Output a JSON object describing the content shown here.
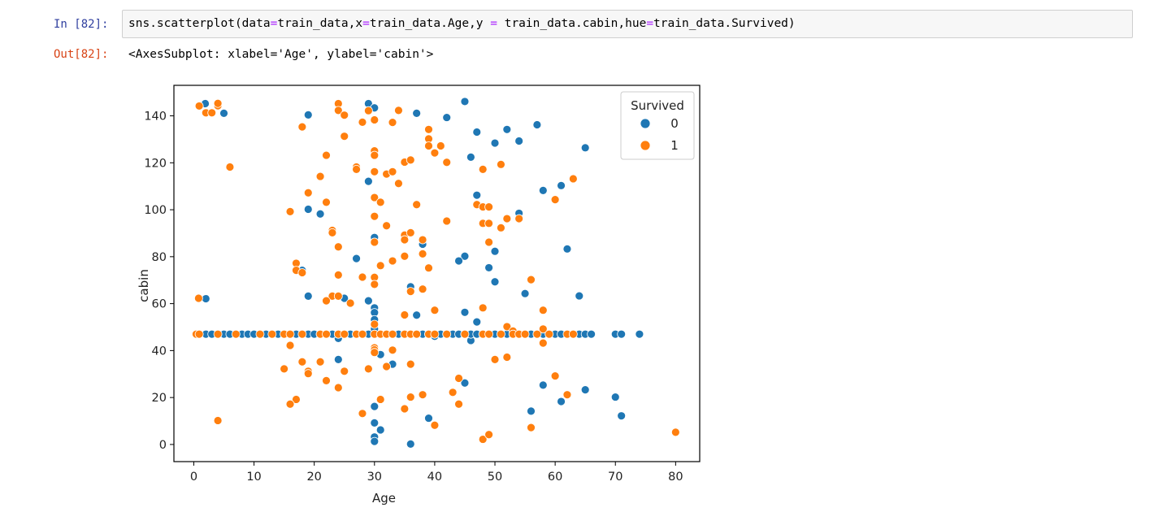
{
  "cell": {
    "in_prompt": "In [82]:",
    "out_prompt": "Out[82]:",
    "code_parts": [
      "sns.scatterplot(data",
      "=",
      "train_data,x",
      "=",
      "train_data.Age,y ",
      "=",
      " train_data.cabin,hue",
      "=",
      "train_data.Survived)"
    ],
    "output": "<AxesSubplot: xlabel='Age', ylabel='cabin'>"
  },
  "chart_data": {
    "type": "scatter",
    "xlabel": "Age",
    "ylabel": "cabin",
    "xlim": [
      -3.3,
      84.0
    ],
    "ylim": [
      -7.3,
      153.0
    ],
    "xticks": [
      0,
      10,
      20,
      30,
      40,
      50,
      60,
      70,
      80
    ],
    "yticks": [
      0,
      20,
      40,
      60,
      80,
      100,
      120,
      140
    ],
    "grid": false,
    "legend": {
      "title": "Survived",
      "placement": "top-right",
      "entries": [
        "0",
        "1"
      ]
    },
    "colors": {
      "0": "#1f77b4",
      "1": "#ff7f0e"
    },
    "series": [
      {
        "name": "0",
        "points": [
          [
            1.9,
            145.2
          ],
          [
            5,
            141.1
          ],
          [
            19,
            140.4
          ],
          [
            29,
            145.2
          ],
          [
            30,
            143.4
          ],
          [
            37,
            141.1
          ],
          [
            42,
            139.3
          ],
          [
            45,
            146.1
          ],
          [
            47,
            133.1
          ],
          [
            52,
            134.2
          ],
          [
            57,
            136.2
          ],
          [
            50,
            128.4
          ],
          [
            54,
            129.3
          ],
          [
            46,
            122.4
          ],
          [
            65,
            126.4
          ],
          [
            29,
            112.1
          ],
          [
            58,
            108.2
          ],
          [
            61,
            110.3
          ],
          [
            47,
            106.2
          ],
          [
            19,
            100.2
          ],
          [
            21,
            98.2
          ],
          [
            54,
            98.5
          ],
          [
            30,
            88.2
          ],
          [
            38,
            85.3
          ],
          [
            62,
            83.3
          ],
          [
            45,
            80.2
          ],
          [
            50,
            82.3
          ],
          [
            27,
            79.2
          ],
          [
            44,
            78.2
          ],
          [
            18,
            74.2
          ],
          [
            49,
            75.3
          ],
          [
            50,
            69.3
          ],
          [
            36,
            67.2
          ],
          [
            55,
            64.3
          ],
          [
            64,
            63.3
          ],
          [
            2,
            62.1
          ],
          [
            19,
            63.2
          ],
          [
            25,
            62.3
          ],
          [
            29,
            61.2
          ],
          [
            30,
            58.2
          ],
          [
            30,
            56.2
          ],
          [
            37,
            55.1
          ],
          [
            30,
            53.2
          ],
          [
            45,
            56.3
          ],
          [
            47,
            52.2
          ],
          [
            30,
            49.2
          ],
          [
            46,
            44.3
          ],
          [
            24,
            45.2
          ],
          [
            40,
            46.1
          ],
          [
            31,
            38.3
          ],
          [
            24,
            36.2
          ],
          [
            33,
            34.2
          ],
          [
            45,
            26.2
          ],
          [
            58,
            25.3
          ],
          [
            65,
            23.3
          ],
          [
            61,
            18.3
          ],
          [
            70,
            20.2
          ],
          [
            56,
            14.2
          ],
          [
            39,
            11.2
          ],
          [
            30,
            16.2
          ],
          [
            71,
            12.2
          ],
          [
            30,
            9.2
          ],
          [
            31,
            6.2
          ],
          [
            30,
            3.2
          ],
          [
            30,
            1.3
          ],
          [
            36,
            0.2
          ],
          [
            1,
            47
          ],
          [
            2,
            47
          ],
          [
            3,
            47
          ],
          [
            5,
            47
          ],
          [
            6,
            47
          ],
          [
            8,
            47
          ],
          [
            9,
            47
          ],
          [
            10,
            47
          ],
          [
            12,
            47
          ],
          [
            14,
            47
          ],
          [
            17,
            47
          ],
          [
            18,
            47
          ],
          [
            19,
            47
          ],
          [
            20,
            47
          ],
          [
            21,
            47
          ],
          [
            22,
            47
          ],
          [
            23,
            47
          ],
          [
            24,
            47
          ],
          [
            25,
            47
          ],
          [
            26,
            47
          ],
          [
            27,
            47
          ],
          [
            28,
            47
          ],
          [
            29,
            47
          ],
          [
            30,
            47
          ],
          [
            31,
            47
          ],
          [
            32,
            47
          ],
          [
            33,
            47
          ],
          [
            34,
            47
          ],
          [
            35,
            47
          ],
          [
            36,
            47
          ],
          [
            37,
            47
          ],
          [
            38,
            47
          ],
          [
            39,
            47
          ],
          [
            40,
            47
          ],
          [
            41,
            47
          ],
          [
            42,
            47
          ],
          [
            43,
            47
          ],
          [
            44,
            47
          ],
          [
            45,
            47
          ],
          [
            46,
            47
          ],
          [
            47,
            47
          ],
          [
            48,
            47
          ],
          [
            49,
            47
          ],
          [
            50,
            47
          ],
          [
            51,
            47
          ],
          [
            52,
            47
          ],
          [
            53,
            47
          ],
          [
            55,
            47
          ],
          [
            56,
            47
          ],
          [
            57,
            47
          ],
          [
            58,
            47
          ],
          [
            59,
            47
          ],
          [
            60,
            47
          ],
          [
            61,
            47
          ],
          [
            63,
            47
          ],
          [
            64,
            47
          ],
          [
            65,
            47
          ],
          [
            66,
            47
          ],
          [
            70,
            47
          ],
          [
            71,
            47
          ],
          [
            74,
            47
          ]
        ]
      },
      {
        "name": "1",
        "points": [
          [
            0.9,
            144.2
          ],
          [
            2,
            141.3
          ],
          [
            3,
            141.3
          ],
          [
            4,
            144.3
          ],
          [
            4,
            145.3
          ],
          [
            6,
            118.2
          ],
          [
            18,
            135.3
          ],
          [
            24,
            145.2
          ],
          [
            24,
            142.3
          ],
          [
            25,
            140.3
          ],
          [
            28,
            137.3
          ],
          [
            30,
            138.3
          ],
          [
            29,
            142.2
          ],
          [
            34,
            142.3
          ],
          [
            30,
            125.1
          ],
          [
            30,
            123.2
          ],
          [
            25,
            131.3
          ],
          [
            22,
            123.2
          ],
          [
            21,
            114.2
          ],
          [
            27,
            118.2
          ],
          [
            27,
            117.2
          ],
          [
            19,
            107.2
          ],
          [
            22,
            103.2
          ],
          [
            16,
            99.2
          ],
          [
            30,
            116.2
          ],
          [
            32,
            115.2
          ],
          [
            33,
            116.2
          ],
          [
            34,
            111.2
          ],
          [
            35,
            120.3
          ],
          [
            36,
            121.2
          ],
          [
            33,
            137.2
          ],
          [
            39,
            134.2
          ],
          [
            39,
            130.2
          ],
          [
            39,
            127.2
          ],
          [
            40,
            124.2
          ],
          [
            41,
            127.2
          ],
          [
            42,
            120.2
          ],
          [
            48,
            117.2
          ],
          [
            51,
            119.3
          ],
          [
            52,
            96.2
          ],
          [
            54,
            96.2
          ],
          [
            60,
            104.3
          ],
          [
            63,
            113.2
          ],
          [
            47,
            102.2
          ],
          [
            48,
            101.2
          ],
          [
            49,
            101.2
          ],
          [
            48,
            94.2
          ],
          [
            49,
            94.2
          ],
          [
            51,
            92.3
          ],
          [
            42,
            95.2
          ],
          [
            37,
            102.2
          ],
          [
            30,
            105.2
          ],
          [
            31,
            103.2
          ],
          [
            30,
            97.2
          ],
          [
            32,
            93.2
          ],
          [
            23,
            91.2
          ],
          [
            23,
            90.2
          ],
          [
            35,
            89.2
          ],
          [
            36,
            90.2
          ],
          [
            35,
            87.2
          ],
          [
            38,
            87.2
          ],
          [
            49,
            86.2
          ],
          [
            30,
            86.2
          ],
          [
            24,
            84.2
          ],
          [
            33,
            78.2
          ],
          [
            31,
            76.2
          ],
          [
            35,
            80.2
          ],
          [
            38,
            81.2
          ],
          [
            39,
            75.2
          ],
          [
            17,
            77.2
          ],
          [
            17,
            74.2
          ],
          [
            18,
            73.2
          ],
          [
            24,
            72.2
          ],
          [
            28,
            71.3
          ],
          [
            30,
            71.2
          ],
          [
            30,
            68.2
          ],
          [
            36,
            65.2
          ],
          [
            38,
            66.2
          ],
          [
            56,
            70.2
          ],
          [
            23,
            63.2
          ],
          [
            24,
            63.2
          ],
          [
            22,
            61.2
          ],
          [
            26,
            60.2
          ],
          [
            35,
            55.2
          ],
          [
            40,
            57.2
          ],
          [
            48,
            58.2
          ],
          [
            58,
            57.2
          ],
          [
            0.8,
            62.3
          ],
          [
            30,
            51.2
          ],
          [
            52,
            50.2
          ],
          [
            53,
            48.3
          ],
          [
            58,
            49.2
          ],
          [
            58,
            43.2
          ],
          [
            16,
            42.2
          ],
          [
            30,
            41.2
          ],
          [
            30,
            40.3
          ],
          [
            30,
            39.2
          ],
          [
            33,
            40.2
          ],
          [
            18,
            35.2
          ],
          [
            21,
            35.2
          ],
          [
            19,
            31.2
          ],
          [
            19,
            30.2
          ],
          [
            15,
            32.2
          ],
          [
            25,
            31.2
          ],
          [
            29,
            32.2
          ],
          [
            32,
            33.2
          ],
          [
            36,
            34.2
          ],
          [
            50,
            36.2
          ],
          [
            52,
            37.2
          ],
          [
            22,
            27.2
          ],
          [
            24,
            24.2
          ],
          [
            17,
            19.2
          ],
          [
            16,
            17.2
          ],
          [
            31,
            19.2
          ],
          [
            36,
            20.2
          ],
          [
            38,
            21.2
          ],
          [
            43,
            22.2
          ],
          [
            44,
            28.2
          ],
          [
            44,
            17.2
          ],
          [
            35,
            15.2
          ],
          [
            28,
            13.2
          ],
          [
            4,
            10.2
          ],
          [
            40,
            8.2
          ],
          [
            56,
            7.2
          ],
          [
            60,
            29.2
          ],
          [
            62,
            21.2
          ],
          [
            48,
            2.2
          ],
          [
            49,
            4.2
          ],
          [
            80,
            5.2
          ],
          [
            0.4,
            47
          ],
          [
            0.9,
            47
          ],
          [
            4,
            47
          ],
          [
            7,
            47
          ],
          [
            11,
            47
          ],
          [
            13,
            47
          ],
          [
            15,
            47
          ],
          [
            16,
            47
          ],
          [
            18,
            47
          ],
          [
            21,
            47
          ],
          [
            22,
            47
          ],
          [
            24,
            47
          ],
          [
            25,
            47
          ],
          [
            27,
            47
          ],
          [
            28,
            47
          ],
          [
            30,
            47
          ],
          [
            31,
            47
          ],
          [
            32,
            47
          ],
          [
            33,
            47
          ],
          [
            35,
            47
          ],
          [
            36,
            47
          ],
          [
            37,
            47
          ],
          [
            39,
            47
          ],
          [
            40,
            47
          ],
          [
            42,
            47
          ],
          [
            45,
            47
          ],
          [
            48,
            47
          ],
          [
            49,
            47
          ],
          [
            51,
            47
          ],
          [
            53,
            47
          ],
          [
            54,
            47
          ],
          [
            55,
            47
          ],
          [
            57,
            47
          ],
          [
            59,
            47
          ],
          [
            62,
            47
          ],
          [
            63,
            47
          ]
        ]
      }
    ]
  }
}
